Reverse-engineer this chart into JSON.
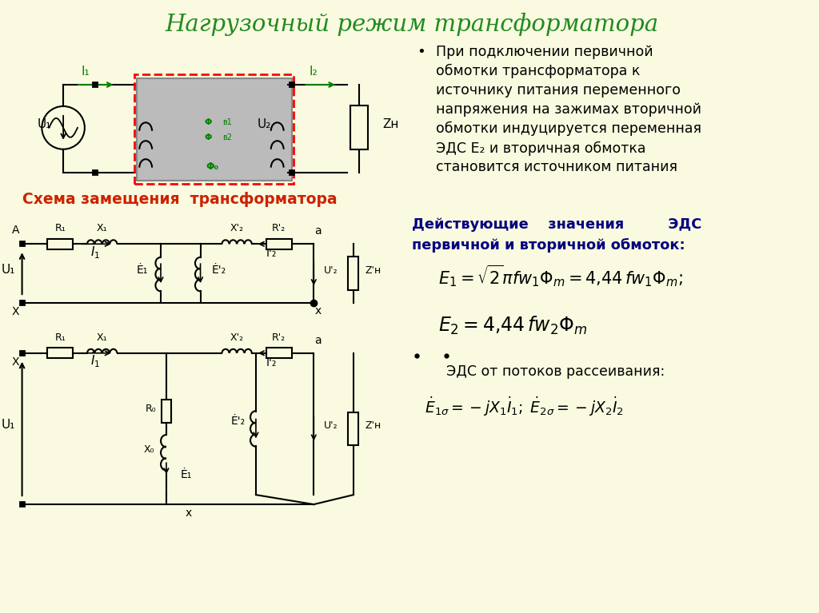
{
  "title": "Нагрузочный режим трансформатора",
  "title_color": "#228B22",
  "bg_color": "#FAFAE0",
  "schema_title": "Схема замещения  трансформатора",
  "schema_title_color": "#CC2200",
  "right_title_color": "#000080",
  "description_text": "При подключении первичной\nобмотки трансформатора к\nисточнику питания переменного\nнапряжения на зажимах вторичной\nобмотки индуцируется переменная\nЭДС E₂ и вторичная обмотка\nстановится источником питания",
  "eds_scatter": "ЭДС от потоков рассеивания:"
}
